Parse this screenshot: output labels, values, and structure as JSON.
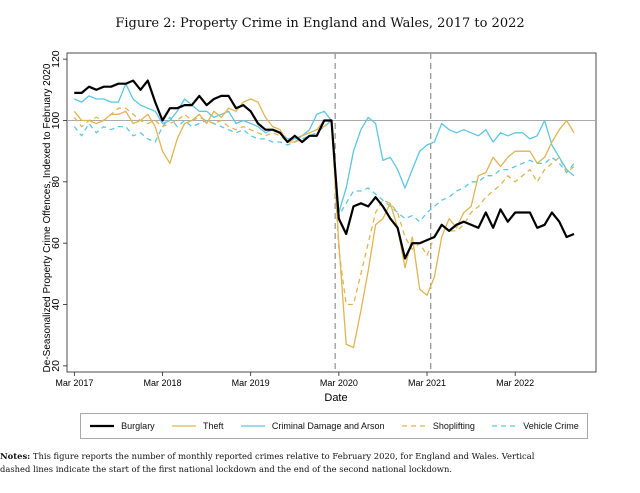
{
  "figure": {
    "title": "Figure 2: Property Crime in England and Wales, 2017 to 2022",
    "notes_label": "Notes:",
    "notes_line1": "This figure reports the number of monthly reported crimes relative to February 2020, for England and Wales. Vertical",
    "notes_line2": "dashed lines indicate the start of the first national lockdown and the end of the second national lockdown."
  },
  "chart_data": {
    "type": "line",
    "xlabel": "Date",
    "ylabel": "De-Seasonalized Property Crime Offences, Indexed to February 2020",
    "ylim": [
      18,
      122
    ],
    "yticks": [
      20,
      40,
      60,
      80,
      100,
      120
    ],
    "xticks": [
      {
        "label": "Mar 2017",
        "month": 0
      },
      {
        "label": "Mar 2018",
        "month": 12
      },
      {
        "label": "Mar 2019",
        "month": 24
      },
      {
        "label": "Mar 2020",
        "month": 36
      },
      {
        "label": "Mar 2021",
        "month": 48
      },
      {
        "label": "Mar 2022",
        "month": 60
      }
    ],
    "xlim": [
      -1,
      71
    ],
    "reference_line_y": 100,
    "vlines": [
      35.5,
      48.5
    ],
    "legend_position": "bottom",
    "colors": {
      "burglary": "#000000",
      "orange": "#e0b551",
      "blue": "#5cc6e4",
      "grid": "#aaaaaa"
    },
    "series": [
      {
        "name": "Burglary",
        "color": "#000000",
        "dash": "none",
        "width": 2.2,
        "values": [
          109,
          109,
          111,
          110,
          111,
          111,
          112,
          112,
          113,
          110,
          113,
          106,
          100,
          104,
          104,
          105,
          105,
          108,
          105,
          107,
          108,
          108,
          104,
          105,
          103,
          99,
          97,
          97,
          96,
          93,
          95,
          93,
          95,
          95,
          100,
          100,
          68,
          63,
          72,
          73,
          72,
          75,
          72,
          68,
          65,
          55,
          60,
          60,
          61,
          62,
          66,
          64,
          66,
          67,
          66,
          65,
          70,
          65,
          71,
          67,
          70,
          70,
          70,
          65,
          66,
          70,
          67,
          62,
          63
        ]
      },
      {
        "name": "Theft",
        "color": "#e0b551",
        "dash": "none",
        "width": 1.3,
        "values": [
          103,
          100,
          100,
          99,
          100,
          102,
          102,
          103,
          99,
          100,
          102,
          98,
          90,
          86,
          94,
          99,
          100,
          102,
          99,
          103,
          101,
          104,
          103,
          106,
          107,
          106,
          101,
          98,
          97,
          93,
          93,
          95,
          96,
          97,
          100,
          100,
          60,
          27,
          26,
          38,
          51,
          66,
          68,
          73,
          65,
          52,
          62,
          45,
          43,
          49,
          62,
          68,
          65,
          70,
          72,
          82,
          83,
          88,
          85,
          88,
          90,
          90,
          90,
          86,
          88,
          93,
          97,
          100,
          96
        ]
      },
      {
        "name": "Criminal Damage and Arson",
        "color": "#5cc6e4",
        "dash": "none",
        "width": 1.3,
        "values": [
          107,
          106,
          108,
          107,
          107,
          106,
          106,
          112,
          107,
          105,
          104,
          103,
          99,
          100,
          103,
          107,
          105,
          103,
          103,
          101,
          102,
          103,
          99,
          100,
          99,
          98,
          96,
          97,
          96,
          94,
          94,
          95,
          97,
          102,
          103,
          100,
          70,
          78,
          90,
          97,
          101,
          99,
          87,
          88,
          84,
          78,
          84,
          90,
          92,
          93,
          99,
          97,
          96,
          97,
          96,
          95,
          97,
          93,
          96,
          95,
          96,
          96,
          94,
          95,
          100,
          92,
          88,
          84,
          82
        ]
      },
      {
        "name": "Shoplifting",
        "color": "#e0b551",
        "dash": "5,4",
        "width": 1.3,
        "values": [
          101,
          98,
          100,
          101,
          100,
          102,
          104,
          104,
          102,
          100,
          99,
          100,
          98,
          99,
          100,
          102,
          100,
          101,
          100,
          99,
          100,
          98,
          97,
          98,
          97,
          96,
          95,
          96,
          95,
          93,
          94,
          95,
          96,
          97,
          98,
          100,
          58,
          40,
          40,
          50,
          60,
          70,
          74,
          73,
          70,
          62,
          58,
          60,
          56,
          62,
          66,
          64,
          64,
          66,
          70,
          72,
          75,
          77,
          79,
          82,
          80,
          82,
          84,
          80,
          84,
          86,
          88,
          83,
          85
        ]
      },
      {
        "name": "Vehicle Crime",
        "color": "#5cc6e4",
        "dash": "5,4",
        "width": 1.3,
        "values": [
          98,
          95,
          99,
          96,
          98,
          97,
          98,
          98,
          95,
          96,
          94,
          93,
          98,
          101,
          98,
          100,
          98,
          99,
          100,
          99,
          98,
          97,
          96,
          97,
          95,
          94,
          94,
          93,
          93,
          92,
          93,
          94,
          95,
          96,
          98,
          100,
          69,
          73,
          77,
          77,
          78,
          76,
          74,
          72,
          70,
          68,
          69,
          67,
          70,
          72,
          74,
          75,
          77,
          78,
          80,
          80,
          82,
          82,
          84,
          84,
          85,
          86,
          87,
          86,
          86,
          88,
          86,
          83,
          86
        ]
      }
    ]
  }
}
